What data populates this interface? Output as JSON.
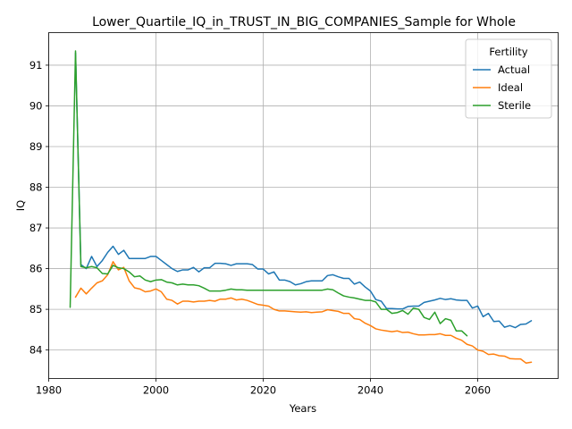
{
  "chart_data": {
    "type": "line",
    "title": "Lower_Quartile_IQ_in_TRUST_IN_BIG_COMPANIES_Sample for Whole",
    "xlabel": "Years",
    "ylabel": "IQ",
    "xlim": [
      1980,
      2075
    ],
    "ylim": [
      83.3,
      91.8
    ],
    "xticks": [
      1980,
      2000,
      2020,
      2040,
      2060
    ],
    "yticks": [
      84,
      85,
      86,
      87,
      88,
      89,
      90,
      91
    ],
    "xtick_labels": [
      "1980",
      "2000",
      "2020",
      "2040",
      "2060"
    ],
    "ytick_labels": [
      "84",
      "85",
      "86",
      "87",
      "88",
      "89",
      "90",
      "91"
    ],
    "grid": true,
    "legend": {
      "title": "Fertility",
      "position": "top-right"
    },
    "series": [
      {
        "name": "Actual",
        "color": "#1f77b4",
        "x": [
          1985,
          1986,
          1987,
          1988,
          1989,
          1990,
          1991,
          1992,
          1993,
          1994,
          1995,
          1996,
          1997,
          1998,
          1999,
          2000,
          2001,
          2002,
          2003,
          2004,
          2005,
          2006,
          2007,
          2008,
          2009,
          2010,
          2011,
          2012,
          2013,
          2014,
          2015,
          2016,
          2017,
          2018,
          2019,
          2020,
          2021,
          2022,
          2023,
          2024,
          2025,
          2026,
          2027,
          2028,
          2029,
          2030,
          2031,
          2032,
          2033,
          2034,
          2035,
          2036,
          2037,
          2038,
          2039,
          2040,
          2041,
          2042,
          2043,
          2044,
          2045,
          2046,
          2047,
          2048,
          2049,
          2050,
          2051,
          2052,
          2053,
          2054,
          2055,
          2056,
          2057,
          2058,
          2059,
          2060,
          2061,
          2062,
          2063,
          2064,
          2065,
          2066,
          2067,
          2068,
          2069,
          2070
        ],
        "y": [
          91.3,
          86.1,
          86.0,
          86.3,
          86.05,
          86.2,
          86.4,
          86.55,
          86.35,
          86.45,
          86.25,
          86.25,
          86.25,
          86.25,
          86.3,
          86.3,
          86.2,
          86.1,
          86.0,
          85.93,
          85.97,
          85.97,
          86.03,
          85.92,
          86.02,
          86.02,
          86.13,
          86.13,
          86.12,
          86.08,
          86.12,
          86.12,
          86.12,
          86.1,
          85.99,
          85.99,
          85.87,
          85.92,
          85.72,
          85.72,
          85.68,
          85.6,
          85.63,
          85.68,
          85.7,
          85.7,
          85.7,
          85.83,
          85.85,
          85.8,
          85.76,
          85.76,
          85.62,
          85.67,
          85.55,
          85.45,
          85.24,
          85.2,
          85.02,
          85.02,
          85.01,
          85.01,
          85.07,
          85.08,
          85.08,
          85.17,
          85.2,
          85.23,
          85.27,
          85.24,
          85.26,
          85.23,
          85.22,
          85.22,
          85.03,
          85.08,
          84.82,
          84.9,
          84.7,
          84.71,
          84.56,
          84.6,
          84.55,
          84.63,
          84.64,
          84.72
        ]
      },
      {
        "name": "Ideal",
        "color": "#ff7f0e",
        "x": [
          1985,
          1986,
          1987,
          1988,
          1989,
          1990,
          1991,
          1992,
          1993,
          1994,
          1995,
          1996,
          1997,
          1998,
          1999,
          2000,
          2001,
          2002,
          2003,
          2004,
          2005,
          2006,
          2007,
          2008,
          2009,
          2010,
          2011,
          2012,
          2013,
          2014,
          2015,
          2016,
          2017,
          2018,
          2019,
          2020,
          2021,
          2022,
          2023,
          2024,
          2025,
          2026,
          2027,
          2028,
          2029,
          2030,
          2031,
          2032,
          2033,
          2034,
          2035,
          2036,
          2037,
          2038,
          2039,
          2040,
          2041,
          2042,
          2043,
          2044,
          2045,
          2046,
          2047,
          2048,
          2049,
          2050,
          2051,
          2052,
          2053,
          2054,
          2055,
          2056,
          2057,
          2058,
          2059,
          2060,
          2061,
          2062,
          2063,
          2064,
          2065,
          2066,
          2067,
          2068,
          2069,
          2070
        ],
        "y": [
          85.3,
          85.52,
          85.38,
          85.52,
          85.65,
          85.7,
          85.85,
          86.17,
          85.97,
          86.03,
          85.7,
          85.53,
          85.5,
          85.43,
          85.45,
          85.5,
          85.43,
          85.25,
          85.22,
          85.13,
          85.2,
          85.2,
          85.18,
          85.2,
          85.2,
          85.22,
          85.2,
          85.25,
          85.25,
          85.28,
          85.23,
          85.25,
          85.22,
          85.17,
          85.12,
          85.1,
          85.08,
          85.0,
          84.96,
          84.96,
          84.95,
          84.94,
          84.93,
          84.94,
          84.92,
          84.93,
          84.94,
          84.99,
          84.97,
          84.95,
          84.9,
          84.9,
          84.77,
          84.75,
          84.66,
          84.6,
          84.52,
          84.49,
          84.47,
          84.45,
          84.47,
          84.43,
          84.44,
          84.4,
          84.37,
          84.37,
          84.38,
          84.38,
          84.4,
          84.36,
          84.36,
          84.29,
          84.24,
          84.14,
          84.1,
          84.0,
          83.97,
          83.89,
          83.9,
          83.86,
          83.85,
          83.79,
          83.78,
          83.78,
          83.68,
          83.7
        ]
      },
      {
        "name": "Sterile",
        "color": "#2ca02c",
        "x": [
          1984,
          1985,
          1986,
          1987,
          1988,
          1989,
          1990,
          1991,
          1992,
          1993,
          1994,
          1995,
          1996,
          1997,
          1998,
          1999,
          2000,
          2001,
          2002,
          2003,
          2004,
          2005,
          2006,
          2007,
          2008,
          2009,
          2010,
          2011,
          2012,
          2013,
          2014,
          2015,
          2016,
          2017,
          2018,
          2019,
          2020,
          2021,
          2022,
          2023,
          2024,
          2025,
          2026,
          2027,
          2028,
          2029,
          2030,
          2031,
          2032,
          2033,
          2034,
          2035,
          2036,
          2037,
          2038,
          2039,
          2040,
          2041,
          2042,
          2043,
          2044,
          2045,
          2046,
          2047,
          2048,
          2049,
          2050,
          2051,
          2052,
          2053,
          2054,
          2055,
          2056,
          2057,
          2058
        ],
        "y": [
          85.05,
          91.35,
          86.05,
          86.02,
          86.05,
          86.02,
          85.88,
          85.87,
          86.08,
          86.02,
          86.0,
          85.92,
          85.8,
          85.82,
          85.72,
          85.68,
          85.72,
          85.73,
          85.67,
          85.65,
          85.6,
          85.62,
          85.6,
          85.6,
          85.58,
          85.52,
          85.45,
          85.45,
          85.45,
          85.47,
          85.5,
          85.48,
          85.48,
          85.47,
          85.47,
          85.47,
          85.47,
          85.47,
          85.47,
          85.47,
          85.47,
          85.47,
          85.47,
          85.47,
          85.47,
          85.47,
          85.47,
          85.47,
          85.5,
          85.48,
          85.4,
          85.33,
          85.3,
          85.28,
          85.25,
          85.22,
          85.22,
          85.18,
          85.0,
          85.0,
          84.9,
          84.92,
          84.97,
          84.88,
          85.03,
          85.0,
          84.8,
          84.75,
          84.93,
          84.65,
          84.77,
          84.73,
          84.47,
          84.47,
          84.35
        ]
      }
    ]
  }
}
